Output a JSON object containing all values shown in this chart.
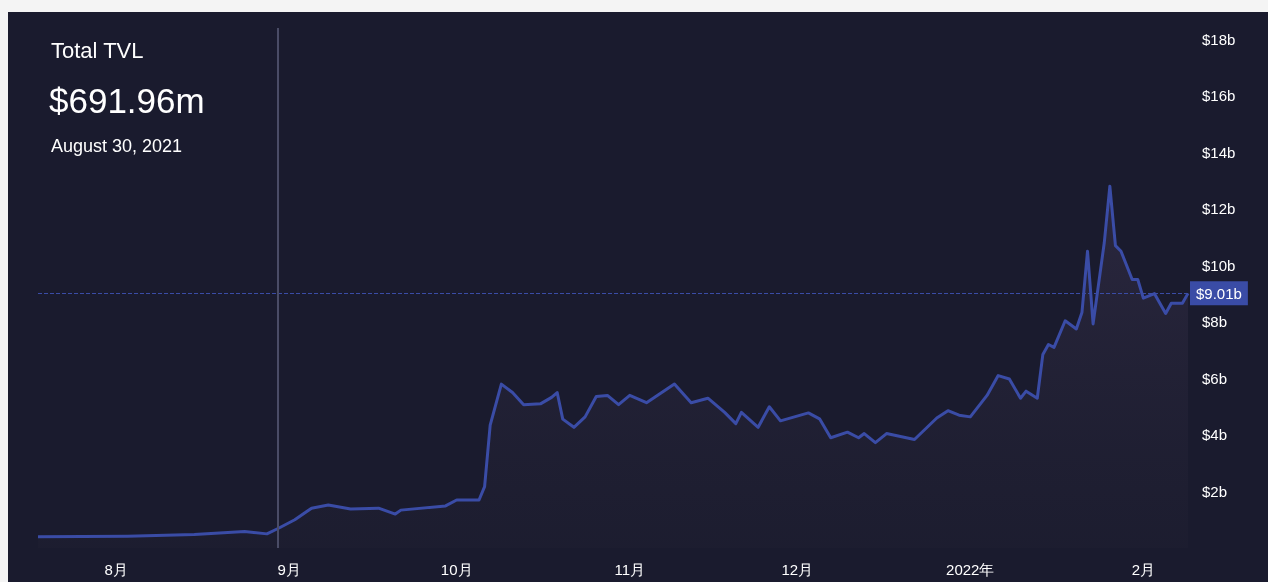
{
  "chart_data": {
    "type": "area",
    "title": "Total TVL",
    "subtitle": "$691.96m",
    "annotations": [
      "August 30, 2021"
    ],
    "series": [
      {
        "color": "#3a4ca6",
        "x": [
          "2021-07-18",
          "2021-08-03",
          "2021-08-15",
          "2021-08-24",
          "2021-08-28",
          "2021-08-30",
          "2021-09-02",
          "2021-09-05",
          "2021-09-08",
          "2021-09-12",
          "2021-09-17",
          "2021-09-20",
          "2021-09-21",
          "2021-09-29",
          "2021-10-01",
          "2021-10-05",
          "2021-10-06",
          "2021-10-07",
          "2021-10-09",
          "2021-10-11",
          "2021-10-13",
          "2021-10-16",
          "2021-10-18",
          "2021-10-19",
          "2021-10-20",
          "2021-10-22",
          "2021-10-24",
          "2021-10-26",
          "2021-10-28",
          "2021-10-30",
          "2021-11-01",
          "2021-11-04",
          "2021-11-09",
          "2021-11-12",
          "2021-11-15",
          "2021-11-18",
          "2021-11-20",
          "2021-11-21",
          "2021-11-24",
          "2021-11-26",
          "2021-11-28",
          "2021-12-03",
          "2021-12-05",
          "2021-12-07",
          "2021-12-10",
          "2021-12-12",
          "2021-12-13",
          "2021-12-15",
          "2021-12-17",
          "2021-12-22",
          "2021-12-26",
          "2021-12-28",
          "2021-12-30",
          "2022-01-01",
          "2022-01-04",
          "2022-01-06",
          "2022-01-08",
          "2022-01-10",
          "2022-01-11",
          "2022-01-13",
          "2022-01-14",
          "2022-01-15",
          "2022-01-16",
          "2022-01-18",
          "2022-01-20",
          "2022-01-21",
          "2022-01-22",
          "2022-01-23",
          "2022-01-25",
          "2022-01-26",
          "2022-01-27",
          "2022-01-28",
          "2022-01-30",
          "2022-01-31",
          "2022-02-01",
          "2022-02-03",
          "2022-02-05",
          "2022-02-06",
          "2022-02-08",
          "2022-02-09"
        ],
        "values": [
          0.4,
          0.42,
          0.48,
          0.58,
          0.5,
          0.69,
          1.0,
          1.41,
          1.52,
          1.38,
          1.41,
          1.2,
          1.34,
          1.49,
          1.7,
          1.7,
          2.17,
          4.35,
          5.8,
          5.5,
          5.07,
          5.1,
          5.33,
          5.5,
          4.56,
          4.27,
          4.64,
          5.36,
          5.4,
          5.07,
          5.4,
          5.14,
          5.8,
          5.14,
          5.3,
          4.8,
          4.4,
          4.8,
          4.27,
          5.0,
          4.5,
          4.78,
          4.57,
          3.9,
          4.1,
          3.9,
          4.05,
          3.73,
          4.05,
          3.84,
          4.6,
          4.86,
          4.7,
          4.64,
          5.4,
          6.1,
          5.98,
          5.3,
          5.55,
          5.3,
          6.85,
          7.2,
          7.1,
          8.04,
          7.75,
          8.33,
          10.5,
          7.93,
          10.8,
          12.8,
          10.7,
          10.5,
          9.5,
          9.5,
          8.84,
          9.0,
          8.3,
          8.66,
          8.66,
          9.01
        ]
      }
    ],
    "xlim": [
      "2021-07-18",
      "2022-02-09"
    ],
    "xticks": [
      {
        "value": "2021-08-01",
        "label": "8月"
      },
      {
        "value": "2021-09-01",
        "label": "9月"
      },
      {
        "value": "2021-10-01",
        "label": "10月"
      },
      {
        "value": "2021-11-01",
        "label": "11月"
      },
      {
        "value": "2021-12-01",
        "label": "12月"
      },
      {
        "value": "2022-01-01",
        "label": "2022年"
      },
      {
        "value": "2022-02-01",
        "label": "2月"
      }
    ],
    "ylim": [
      0,
      18.4
    ],
    "yticks": [
      {
        "value": 2,
        "label": "$2b"
      },
      {
        "value": 4,
        "label": "$4b"
      },
      {
        "value": 6,
        "label": "$6b"
      },
      {
        "value": 8,
        "label": "$8b"
      },
      {
        "value": 10,
        "label": "$10b"
      },
      {
        "value": 12,
        "label": "$12b"
      },
      {
        "value": 14,
        "label": "$14b"
      },
      {
        "value": 16,
        "label": "$16b"
      },
      {
        "value": 18,
        "label": "$18b"
      }
    ],
    "ref_lines": [
      {
        "axis": "y",
        "value": 9.01,
        "label": "$9.01b",
        "color": "#3a4ca6",
        "line_style": "dashed"
      },
      {
        "axis": "x",
        "value": "2021-08-30",
        "label": null,
        "color": "#4a4c66",
        "line_style": "solid"
      }
    ],
    "grid": false,
    "marker": "none",
    "line_style": "solid"
  }
}
